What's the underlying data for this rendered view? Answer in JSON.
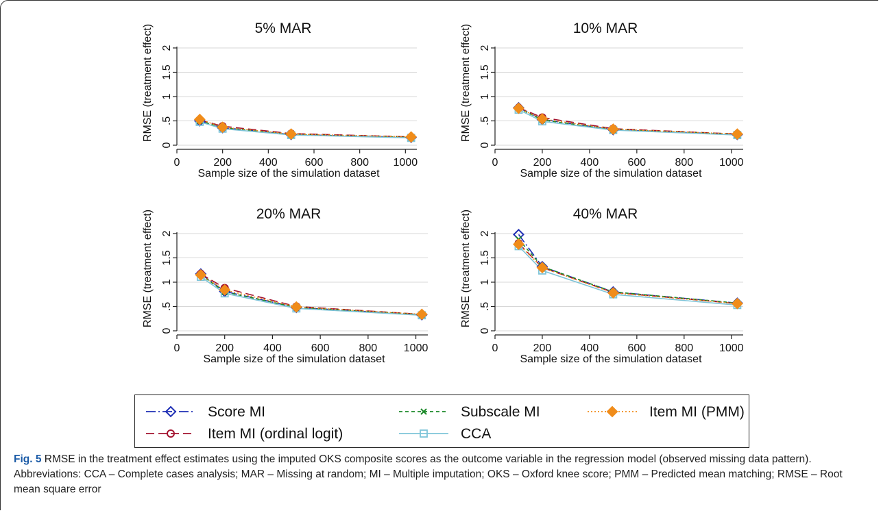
{
  "chart_data": [
    {
      "type": "line",
      "title": "5% MAR",
      "xlabel": "Sample size of the simulation dataset",
      "ylabel": "RMSE (treatment effect)",
      "xlim": [
        0,
        1050
      ],
      "ylim": [
        0,
        2
      ],
      "xticks": [
        0,
        200,
        400,
        600,
        800,
        1000
      ],
      "xtick_labels": [
        "0",
        "200",
        "400",
        "600",
        "800",
        "1000"
      ],
      "yticks": [
        0,
        0.5,
        1,
        1.5,
        2
      ],
      "ytick_labels": [
        "0",
        ".5",
        "1",
        "1.5",
        "2"
      ],
      "grid": true,
      "x": [
        100,
        200,
        500,
        1025
      ],
      "series": [
        {
          "name": "Score MI",
          "values": [
            0.5,
            0.36,
            0.22,
            0.16
          ]
        },
        {
          "name": "Item MI (ordinal logit)",
          "values": [
            0.52,
            0.39,
            0.24,
            0.17
          ]
        },
        {
          "name": "Subscale MI",
          "values": [
            0.5,
            0.36,
            0.22,
            0.16
          ]
        },
        {
          "name": "CCA",
          "values": [
            0.48,
            0.34,
            0.21,
            0.15
          ]
        },
        {
          "name": "Item MI (PMM)",
          "values": [
            0.53,
            0.37,
            0.23,
            0.17
          ]
        }
      ]
    },
    {
      "type": "line",
      "title": "10% MAR",
      "xlabel": "Sample size of the simulation dataset",
      "ylabel": "RMSE (treatment effect)",
      "xlim": [
        0,
        1050
      ],
      "ylim": [
        0,
        2
      ],
      "xticks": [
        0,
        200,
        400,
        600,
        800,
        1000
      ],
      "xtick_labels": [
        "0",
        "200",
        "400",
        "600",
        "800",
        "1000"
      ],
      "yticks": [
        0,
        0.5,
        1,
        1.5,
        2
      ],
      "ytick_labels": [
        "0",
        ".5",
        "1",
        "1.5",
        "2"
      ],
      "grid": true,
      "x": [
        100,
        200,
        500,
        1025
      ],
      "series": [
        {
          "name": "Score MI",
          "values": [
            0.77,
            0.53,
            0.32,
            0.22
          ]
        },
        {
          "name": "Item MI (ordinal logit)",
          "values": [
            0.77,
            0.57,
            0.34,
            0.23
          ]
        },
        {
          "name": "Subscale MI",
          "values": [
            0.76,
            0.52,
            0.32,
            0.22
          ]
        },
        {
          "name": "CCA",
          "values": [
            0.73,
            0.49,
            0.31,
            0.21
          ]
        },
        {
          "name": "Item MI (PMM)",
          "values": [
            0.76,
            0.54,
            0.33,
            0.23
          ]
        }
      ]
    },
    {
      "type": "line",
      "title": "20% MAR",
      "xlabel": "Sample size of the simulation dataset",
      "ylabel": "RMSE (treatment effect)",
      "xlim": [
        0,
        1050
      ],
      "ylim": [
        0,
        2
      ],
      "xticks": [
        0,
        200,
        400,
        600,
        800,
        1000
      ],
      "xtick_labels": [
        "0",
        "200",
        "400",
        "600",
        "800",
        "1000"
      ],
      "yticks": [
        0,
        0.5,
        1,
        1.5,
        2
      ],
      "ytick_labels": [
        "0",
        ".5",
        "1",
        "1.5",
        "2"
      ],
      "grid": true,
      "x": [
        100,
        200,
        500,
        1025
      ],
      "series": [
        {
          "name": "Score MI",
          "values": [
            1.17,
            0.81,
            0.48,
            0.33
          ]
        },
        {
          "name": "Item MI (ordinal logit)",
          "values": [
            1.17,
            0.88,
            0.5,
            0.34
          ]
        },
        {
          "name": "Subscale MI",
          "values": [
            1.15,
            0.8,
            0.48,
            0.33
          ]
        },
        {
          "name": "CCA",
          "values": [
            1.11,
            0.77,
            0.46,
            0.32
          ]
        },
        {
          "name": "Item MI (PMM)",
          "values": [
            1.15,
            0.84,
            0.49,
            0.34
          ]
        }
      ]
    },
    {
      "type": "line",
      "title": "40% MAR",
      "xlabel": "Sample size of the simulation dataset",
      "ylabel": "RMSE (treatment effect)",
      "xlim": [
        0,
        1050
      ],
      "ylim": [
        0,
        2
      ],
      "xticks": [
        0,
        200,
        400,
        600,
        800,
        1000
      ],
      "xtick_labels": [
        "0",
        "200",
        "400",
        "600",
        "800",
        "1000"
      ],
      "yticks": [
        0,
        0.5,
        1,
        1.5,
        2
      ],
      "ytick_labels": [
        "0",
        ".5",
        "1",
        "1.5",
        "2"
      ],
      "grid": true,
      "x": [
        100,
        200,
        500,
        1025
      ],
      "series": [
        {
          "name": "Score MI",
          "values": [
            1.98,
            1.32,
            0.8,
            0.57
          ]
        },
        {
          "name": "Item MI (ordinal logit)",
          "values": [
            1.8,
            1.3,
            0.79,
            0.56
          ]
        },
        {
          "name": "Subscale MI",
          "values": [
            1.88,
            1.32,
            0.8,
            0.57
          ]
        },
        {
          "name": "CCA",
          "values": [
            1.74,
            1.24,
            0.75,
            0.53
          ]
        },
        {
          "name": "Item MI (PMM)",
          "values": [
            1.78,
            1.3,
            0.78,
            0.56
          ]
        }
      ]
    }
  ],
  "series_styles": [
    {
      "name": "Score MI",
      "color": "#1f2fb5",
      "dash": "long-dash-dot",
      "marker": "diamond-hollow"
    },
    {
      "name": "Item MI (ordinal logit)",
      "color": "#a3122e",
      "dash": "long-dash",
      "marker": "circle-hollow"
    },
    {
      "name": "Subscale MI",
      "color": "#1c8a2a",
      "dash": "short-dash",
      "marker": "x"
    },
    {
      "name": "CCA",
      "color": "#7ec4d8",
      "dash": "solid",
      "marker": "square-hollow"
    },
    {
      "name": "Item MI (PMM)",
      "color": "#f08c1a",
      "dash": "dot",
      "marker": "diamond-filled"
    }
  ],
  "legend": {
    "placement": "bottom",
    "entries": [
      "Score MI",
      "Subscale MI",
      "Item MI (PMM)",
      "Item MI (ordinal logit)",
      "CCA"
    ]
  },
  "caption": {
    "label": "Fig. 5",
    "text": "RMSE in the treatment effect estimates using the imputed OKS composite scores as the outcome variable in the regression model (observed missing data pattern). Abbreviations: CCA – Complete cases analysis; MAR – Missing at random; MI – Multiple imputation; OKS – Oxford knee score; PMM – Predicted mean matching; RMSE – Root mean square error"
  }
}
